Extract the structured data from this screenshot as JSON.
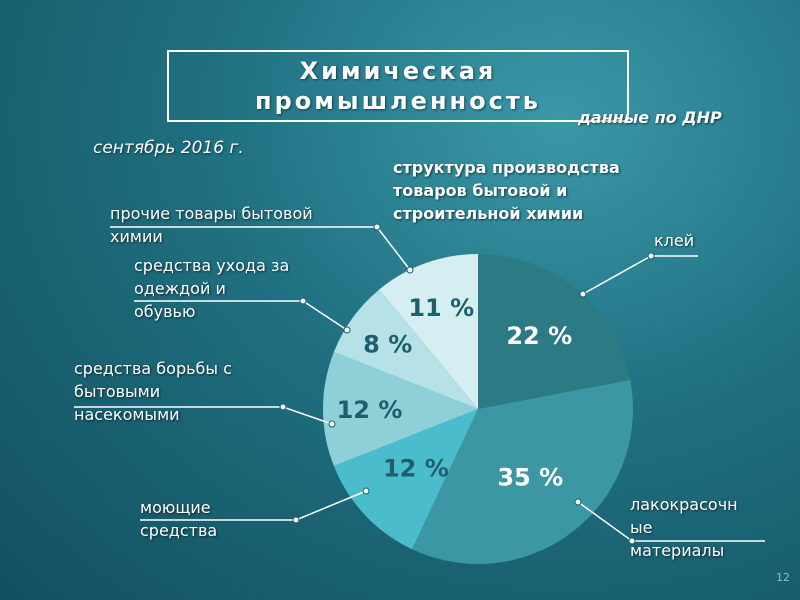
{
  "header": {
    "title_line1": "Химическая",
    "title_line2": "промышленность",
    "subtitle": "данные по ДНР",
    "date": "сентябрь 2016 г."
  },
  "slide_number": "12",
  "chart_data": {
    "type": "pie",
    "title": "структура производства товаров бытовой и строительной химии",
    "title_lines": [
      "структура производства",
      "товаров бытовой и",
      "строительной химии"
    ],
    "slices": [
      {
        "label": "клей",
        "label_lines": [
          "клей"
        ],
        "value": 22,
        "value_label": "22 %",
        "color": "#2c7a84"
      },
      {
        "label": "лакокрасочные материалы",
        "label_lines": [
          "лакокрасочн",
          "ые",
          "материалы"
        ],
        "value": 35,
        "value_label": "35 %",
        "color": "#3a97a3"
      },
      {
        "label": "моющие средства",
        "label_lines": [
          "моющие",
          "средства"
        ],
        "value": 12,
        "value_label": "12 %",
        "color": "#4bbccc"
      },
      {
        "label": "средства борьбы с бытовыми насекомыми",
        "label_lines": [
          "средства борьбы с",
          "бытовыми",
          "насекомыми"
        ],
        "value": 12,
        "value_label": "12 %",
        "color": "#8fd0d8"
      },
      {
        "label": "средства ухода за одеждой и обувью",
        "label_lines": [
          "средства ухода за",
          "одеждой и",
          "обувью"
        ],
        "value": 8,
        "value_label": "8 %",
        "color": "#b6e1e6"
      },
      {
        "label": "прочие товары бытовой химии",
        "label_lines": [
          "прочие товары бытовой",
          "химии"
        ],
        "value": 11,
        "value_label": "11 %",
        "color": "#d4eef1"
      }
    ]
  }
}
